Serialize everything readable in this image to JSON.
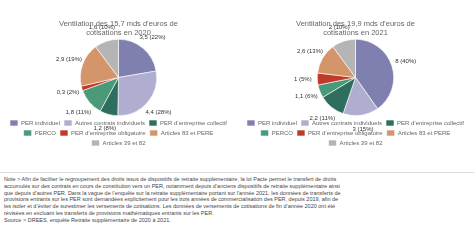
{
  "chart_data": [
    {
      "type": "pie",
      "title": "Ventilation des 15,7 mds d’euros de\ncotisations en 2020",
      "categories": [
        "PER individuel",
        "Autres contrats individuels",
        "PER d’entreprise collectif",
        "PERCO",
        "PER d’entreprise obligatoire",
        "Articles 83 et PERE",
        "Articles 39 et 82"
      ],
      "values": [
        3.5,
        4.4,
        1.2,
        1.8,
        0.3,
        2.9,
        1.6
      ],
      "value_labels": [
        "3,5 (22%)",
        "4,4 (28%)",
        "1,2 (8%)",
        "1,8 (11%)",
        "0,3 (2%)",
        "2,9 (19%)",
        "1,6 (10%)"
      ],
      "colors": [
        "#8080b0",
        "#b0aed0",
        "#2d6e5e",
        "#4a9a7a",
        "#c0392b",
        "#d4956a",
        "#b5b5b5"
      ],
      "data_labels": true,
      "legend": "bottom"
    },
    {
      "type": "pie",
      "title": "Ventilation des 19,9 mds d’euros de\ncotisations en 2021",
      "categories": [
        "PER individuel",
        "Autres contrats individuels",
        "PER d’entreprise collectif",
        "PERCO",
        "PER d’entreprise obligatoire",
        "Articles 83 et PERE",
        "Articles 39 et 82"
      ],
      "values": [
        8,
        3,
        2.2,
        1.1,
        1,
        2.6,
        2
      ],
      "value_labels": [
        "8 (40%)",
        "3 (15%)",
        "2,2 (11%)",
        "1,1 (6%)",
        "1 (5%)",
        "2,6 (13%)",
        "2 (10%)"
      ],
      "colors": [
        "#8080b0",
        "#b0aed0",
        "#2d6e5e",
        "#4a9a7a",
        "#c0392b",
        "#d4956a",
        "#b5b5b5"
      ],
      "data_labels": true,
      "legend": "bottom"
    }
  ],
  "annotations": [
    "Note > Afin de faciliter le regroupement des droits issus de dispositifs de retraite supplémentaire, la loi Pacte permet le transfert de droits",
    "accumulés sur des contrats en cours de constitution vers un PER, notamment depuis d’anciens dispositifs de retraite supplémentaire ainsi",
    "que depuis d’autres PER. Dans la vague de l’enquête sur la retraite supplémentaire portant sur l’année 2021, les données de transferts de",
    "provisions entrants sur les PER sont demandées explicitement pour les trois années de commercialisation des PER, depuis 2019, afin de",
    "les isoler et d’éviter de surestimer les versements de cotisations. Les données de versements de cotisations de fin d’année 2020 ont été",
    "révisées en excluant les transferts de provisions mathématiques entrants sur les PER.",
    "Source > DREES, enquête Retraite supplémentaire de 2020 à 2021."
  ]
}
